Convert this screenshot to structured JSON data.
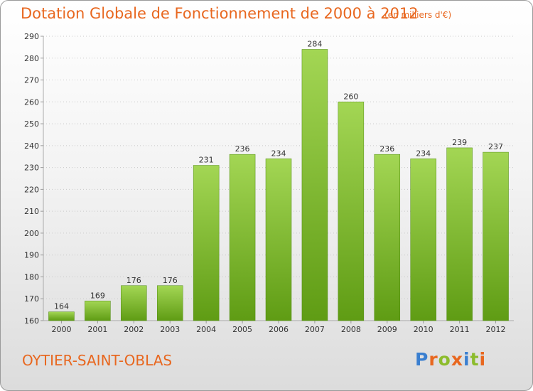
{
  "title": "Dotation Globale de Fonctionnement de 2000 à 2012",
  "subtitle": "(en milliers d'€)",
  "commune": "OYTIER-SAINT-OBLAS",
  "logo": {
    "text": "Proxiti",
    "colors": [
      "#3a7fd0",
      "#e8671f",
      "#8cbc2c",
      "#e8671f",
      "#3a7fd0",
      "#8cbc2c",
      "#e8671f"
    ]
  },
  "colors": {
    "accent": "#e8671f",
    "bar_light": "#9fd250",
    "bar_dark": "#5e9a14",
    "grid": "#c9c9c9"
  },
  "chart_data": {
    "type": "bar",
    "categories": [
      "2000",
      "2001",
      "2002",
      "2003",
      "2004",
      "2005",
      "2006",
      "2007",
      "2008",
      "2009",
      "2010",
      "2011",
      "2012"
    ],
    "values": [
      164,
      169,
      176,
      176,
      231,
      236,
      234,
      284,
      260,
      236,
      234,
      239,
      237
    ],
    "data_labels": [
      "164",
      "169",
      "176",
      "176",
      "231",
      "236",
      "234",
      "284",
      "260",
      "236",
      "234",
      "239",
      "237"
    ],
    "y_ticks": [
      "160",
      "170",
      "180",
      "190",
      "200",
      "210",
      "220",
      "230",
      "240",
      "250",
      "260",
      "270",
      "280",
      "290"
    ],
    "ylim": [
      160,
      290
    ],
    "grid": true
  }
}
